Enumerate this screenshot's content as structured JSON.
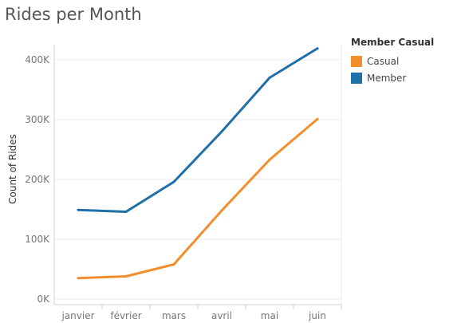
{
  "chart_data": {
    "type": "line",
    "title": "Rides per Month",
    "xlabel": "",
    "ylabel": "Count of Rides",
    "categories": [
      "janvier",
      "février",
      "mars",
      "avril",
      "mai",
      "juin"
    ],
    "ylim": [
      0,
      420000
    ],
    "yticks": [
      0,
      100000,
      200000,
      300000,
      400000
    ],
    "ytick_labels": [
      "0K",
      "100K",
      "200K",
      "300K",
      "400K"
    ],
    "legend_title": "Member Casual",
    "series": [
      {
        "name": "Casual",
        "color": "#f28e2b",
        "values": [
          35000,
          38000,
          58000,
          148000,
          233000,
          301000
        ]
      },
      {
        "name": "Member",
        "color": "#1f6fa8",
        "values": [
          149000,
          146000,
          196000,
          280000,
          370000,
          419000
        ]
      }
    ]
  }
}
